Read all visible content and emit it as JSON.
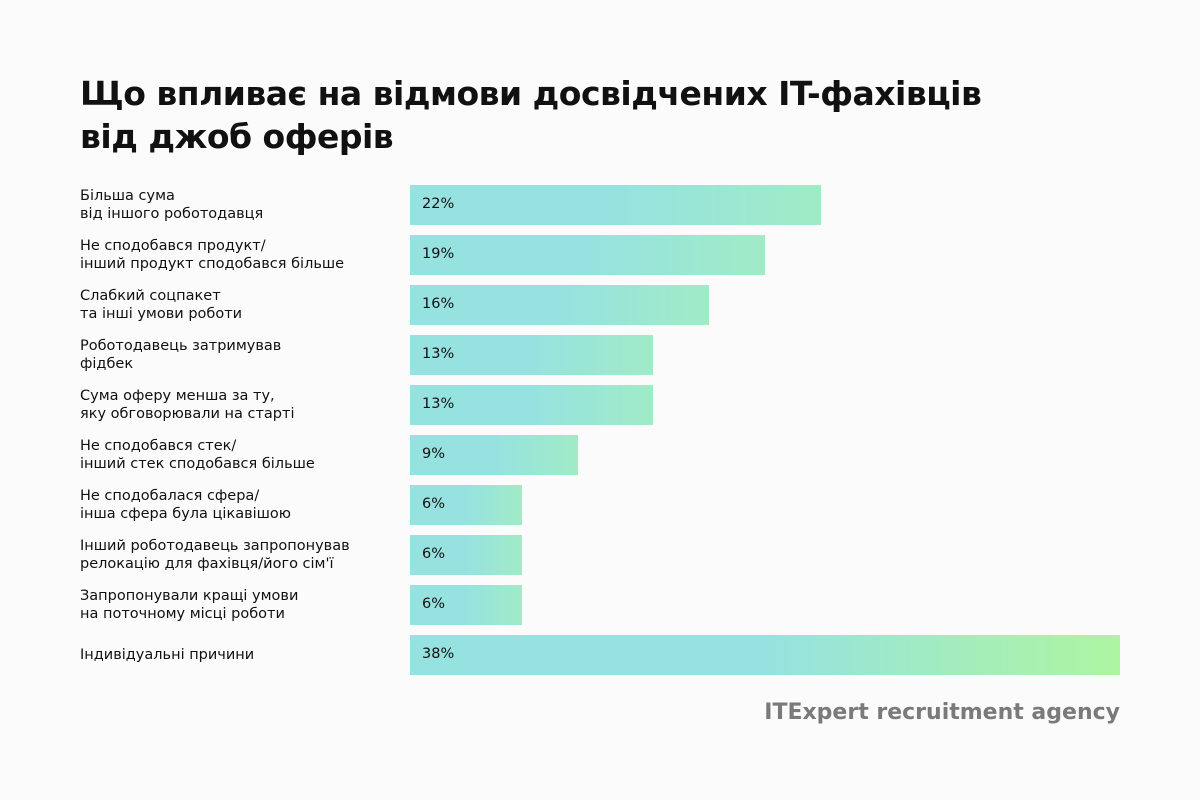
{
  "chart_data": {
    "type": "bar",
    "orientation": "horizontal",
    "title": "Що впливає на відмови досвідчених IT-фахівців від джоб оферів",
    "categories": [
      [
        "Більша сума",
        "від іншого роботодавця"
      ],
      [
        "Не сподобався продукт/",
        "інший продукт сподобався більше"
      ],
      [
        "Слабкий соцпакет",
        "та інші умови роботи"
      ],
      [
        "Роботодавець затримував",
        "фідбек"
      ],
      [
        "Сума оферу менша за ту,",
        "яку обговорювали на старті"
      ],
      [
        "Не сподобався стек/",
        "інший стек сподобався більше"
      ],
      [
        "Не сподобалася сфера/",
        "інша сфера була цікавішою"
      ],
      [
        "Інший роботодавець запропонував",
        "релокацію для фахівця/його сім'ї"
      ],
      [
        "Запропонували кращі умови",
        "на поточному місці роботи"
      ],
      [
        "Індивідуальні причини"
      ]
    ],
    "values": [
      22,
      19,
      16,
      13,
      13,
      9,
      6,
      6,
      6,
      38
    ],
    "value_labels": [
      "22%",
      "19%",
      "16%",
      "13%",
      "13%",
      "9%",
      "6%",
      "6%",
      "6%",
      "38%"
    ],
    "unit": "%",
    "xlim": [
      0,
      38
    ],
    "grid": false,
    "colors": {
      "start": "#96e2e0",
      "end": "#adf5a0"
    }
  },
  "title_lines": [
    "Що впливає на відмови досвідчених IT-фахівців",
    "від джоб оферів"
  ],
  "brand": "ITExpert recruitment agency"
}
